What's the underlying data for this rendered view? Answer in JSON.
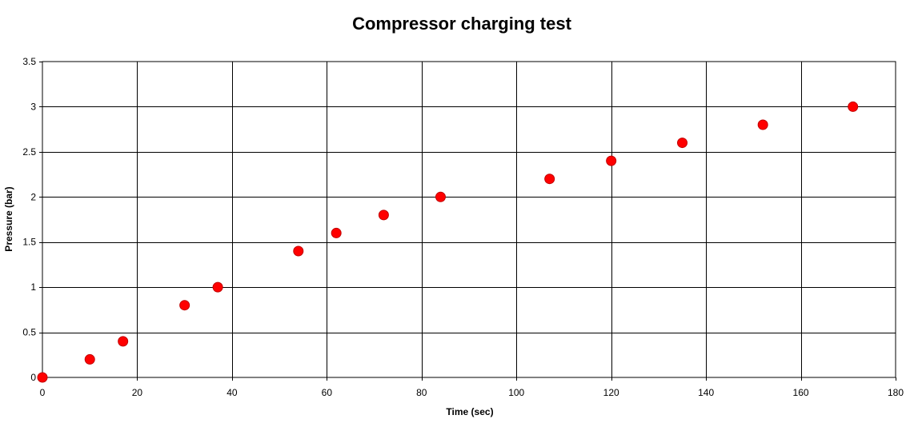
{
  "chart_data": {
    "type": "scatter",
    "title": "Compressor charging test",
    "xlabel": "Time (sec)",
    "ylabel": "Pressure (bar)",
    "xlim": [
      0,
      180
    ],
    "ylim": [
      0,
      3.5
    ],
    "x_ticks": [
      0,
      20,
      40,
      60,
      80,
      100,
      120,
      140,
      160,
      180
    ],
    "y_ticks": [
      0,
      0.5,
      1,
      1.5,
      2,
      2.5,
      3,
      3.5
    ],
    "x_tick_labels": [
      "0",
      "20",
      "40",
      "60",
      "80",
      "100",
      "120",
      "140",
      "160",
      "180"
    ],
    "y_tick_labels": [
      "0",
      "0.5",
      "1",
      "1.5",
      "2",
      "2.5",
      "3",
      "3.5"
    ],
    "grid": true,
    "legend": "none",
    "marker_color": "#ff0000",
    "marker_edge_color": "#c00000",
    "series": [
      {
        "x": [
          0,
          10,
          17,
          30,
          37,
          54,
          62,
          72,
          84,
          107,
          120,
          135,
          152,
          171
        ],
        "y": [
          0,
          0.2,
          0.4,
          0.8,
          1.0,
          1.4,
          1.6,
          1.8,
          2.0,
          2.2,
          2.4,
          2.6,
          2.8,
          3.0
        ]
      }
    ]
  }
}
